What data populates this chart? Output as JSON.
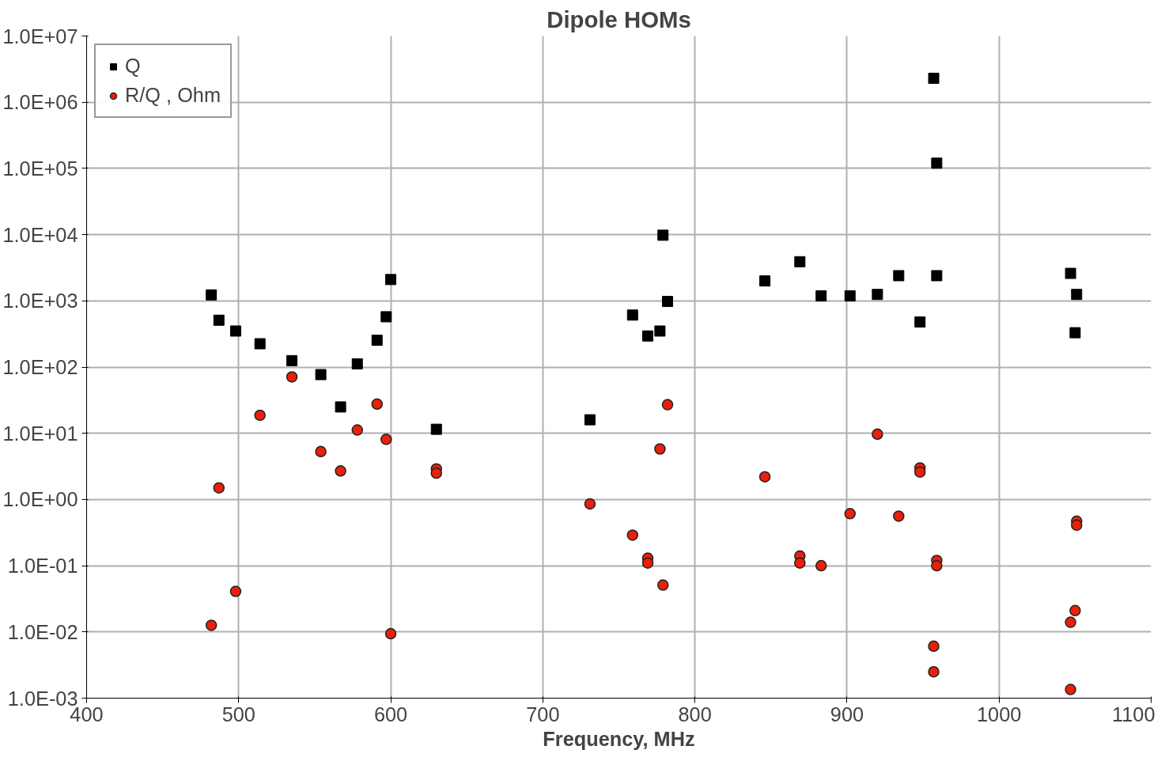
{
  "chart_data": {
    "type": "scatter",
    "title": "Dipole HOMs",
    "xlabel": "Frequency, MHz",
    "log": "y",
    "grid": true,
    "legend": "top left",
    "xlim": [
      400,
      1100
    ],
    "xticks": [
      400,
      500,
      600,
      700,
      800,
      900,
      1000,
      1100
    ],
    "ylim": [
      0.001,
      10000000
    ],
    "yticks": [
      {
        "value": 0.001,
        "label": "1.0E-03"
      },
      {
        "value": 0.01,
        "label": "1.0E-02"
      },
      {
        "value": 0.1,
        "label": "1.0E-01"
      },
      {
        "value": 1,
        "label": "1.0E+00"
      },
      {
        "value": 10,
        "label": "1.0E+01"
      },
      {
        "value": 100,
        "label": "1.0E+02"
      },
      {
        "value": 1000,
        "label": "1.0E+03"
      },
      {
        "value": 10000,
        "label": "1.0E+04"
      },
      {
        "value": 100000,
        "label": "1.0E+05"
      },
      {
        "value": 1000000,
        "label": "1.0E+06"
      },
      {
        "value": 10000000,
        "label": "1.0E+07"
      }
    ],
    "series": [
      {
        "name": "Q",
        "color": "#000000",
        "marker": "square",
        "x": [
          482,
          487,
          498,
          514,
          535,
          554,
          567,
          578,
          591,
          597,
          600,
          630,
          731,
          759,
          769,
          777,
          779,
          782,
          846,
          869,
          883,
          902,
          920,
          934,
          948,
          957,
          959,
          959,
          1047,
          1051,
          1050
        ],
        "values": [
          1230,
          510,
          350,
          225,
          125,
          77,
          25,
          112,
          254,
          575,
          2100,
          11.5,
          16,
          610,
          295,
          350,
          9800,
          980,
          2000,
          3900,
          1190,
          1190,
          1250,
          2400,
          480,
          2300000,
          120000,
          2400,
          2600,
          1250,
          330
        ]
      },
      {
        "name": "R/Q , Ohm",
        "color": "#e8200c",
        "marker": "circle",
        "x": [
          482,
          487,
          498,
          514,
          535,
          554,
          567,
          578,
          591,
          597,
          600,
          630,
          630,
          731,
          759,
          769,
          769,
          779,
          777,
          782,
          846,
          869,
          869,
          883,
          902,
          920,
          934,
          948,
          948,
          957,
          957,
          959,
          959,
          1047,
          1050,
          1047,
          1051,
          1051
        ],
        "values": [
          0.0126,
          1.5,
          0.041,
          18.7,
          71,
          5.3,
          2.7,
          11.2,
          27.6,
          8.1,
          0.0094,
          2.9,
          2.5,
          0.86,
          0.29,
          0.13,
          0.11,
          0.051,
          5.8,
          27,
          2.2,
          0.14,
          0.11,
          0.1,
          0.61,
          9.7,
          0.56,
          3.0,
          2.6,
          0.0061,
          0.0025,
          0.12,
          0.1,
          0.014,
          0.021,
          0.00135,
          0.47,
          0.41
        ]
      }
    ]
  }
}
